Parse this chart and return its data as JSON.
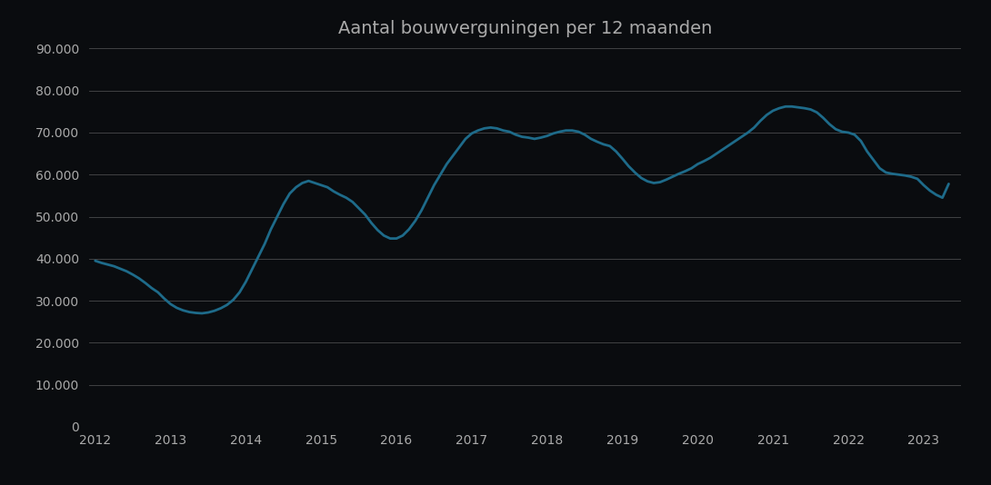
{
  "title": "Aantal bouwverguningen per 12 maanden",
  "background_color": "#0a0c0f",
  "line_color": "#1e6b8a",
  "grid_color": "#666666",
  "text_color": "#aaaaaa",
  "ylim": [
    0,
    90000
  ],
  "yticks": [
    0,
    10000,
    20000,
    30000,
    40000,
    50000,
    60000,
    70000,
    80000,
    90000
  ],
  "xlim_start": 2011.92,
  "xlim_end": 2023.5,
  "xtick_years": [
    2012,
    2013,
    2014,
    2015,
    2016,
    2017,
    2018,
    2019,
    2020,
    2021,
    2022,
    2023
  ],
  "data": [
    [
      2012.0,
      39500
    ],
    [
      2012.083,
      39000
    ],
    [
      2012.167,
      38600
    ],
    [
      2012.25,
      38200
    ],
    [
      2012.333,
      37600
    ],
    [
      2012.417,
      37000
    ],
    [
      2012.5,
      36200
    ],
    [
      2012.583,
      35300
    ],
    [
      2012.667,
      34200
    ],
    [
      2012.75,
      33000
    ],
    [
      2012.833,
      32000
    ],
    [
      2012.917,
      30500
    ],
    [
      2013.0,
      29200
    ],
    [
      2013.083,
      28300
    ],
    [
      2013.167,
      27700
    ],
    [
      2013.25,
      27300
    ],
    [
      2013.333,
      27100
    ],
    [
      2013.417,
      27000
    ],
    [
      2013.5,
      27200
    ],
    [
      2013.583,
      27600
    ],
    [
      2013.667,
      28200
    ],
    [
      2013.75,
      29000
    ],
    [
      2013.833,
      30200
    ],
    [
      2013.917,
      32000
    ],
    [
      2014.0,
      34500
    ],
    [
      2014.083,
      37500
    ],
    [
      2014.167,
      40500
    ],
    [
      2014.25,
      43500
    ],
    [
      2014.333,
      47000
    ],
    [
      2014.417,
      50000
    ],
    [
      2014.5,
      53000
    ],
    [
      2014.583,
      55500
    ],
    [
      2014.667,
      57000
    ],
    [
      2014.75,
      58000
    ],
    [
      2014.833,
      58500
    ],
    [
      2014.917,
      58000
    ],
    [
      2015.0,
      57500
    ],
    [
      2015.083,
      57000
    ],
    [
      2015.167,
      56000
    ],
    [
      2015.25,
      55200
    ],
    [
      2015.333,
      54500
    ],
    [
      2015.417,
      53500
    ],
    [
      2015.5,
      52000
    ],
    [
      2015.583,
      50500
    ],
    [
      2015.667,
      48500
    ],
    [
      2015.75,
      46800
    ],
    [
      2015.833,
      45500
    ],
    [
      2015.917,
      44800
    ],
    [
      2016.0,
      44800
    ],
    [
      2016.083,
      45500
    ],
    [
      2016.167,
      47000
    ],
    [
      2016.25,
      49000
    ],
    [
      2016.333,
      51500
    ],
    [
      2016.417,
      54500
    ],
    [
      2016.5,
      57500
    ],
    [
      2016.583,
      60000
    ],
    [
      2016.667,
      62500
    ],
    [
      2016.75,
      64500
    ],
    [
      2016.833,
      66500
    ],
    [
      2016.917,
      68500
    ],
    [
      2017.0,
      69800
    ],
    [
      2017.083,
      70500
    ],
    [
      2017.167,
      71000
    ],
    [
      2017.25,
      71200
    ],
    [
      2017.333,
      71000
    ],
    [
      2017.417,
      70500
    ],
    [
      2017.5,
      70200
    ],
    [
      2017.583,
      69500
    ],
    [
      2017.667,
      69000
    ],
    [
      2017.75,
      68800
    ],
    [
      2017.833,
      68500
    ],
    [
      2017.917,
      68800
    ],
    [
      2018.0,
      69200
    ],
    [
      2018.083,
      69800
    ],
    [
      2018.167,
      70200
    ],
    [
      2018.25,
      70500
    ],
    [
      2018.333,
      70500
    ],
    [
      2018.417,
      70200
    ],
    [
      2018.5,
      69500
    ],
    [
      2018.583,
      68500
    ],
    [
      2018.667,
      67800
    ],
    [
      2018.75,
      67200
    ],
    [
      2018.833,
      66800
    ],
    [
      2018.917,
      65500
    ],
    [
      2019.0,
      63800
    ],
    [
      2019.083,
      62000
    ],
    [
      2019.167,
      60500
    ],
    [
      2019.25,
      59200
    ],
    [
      2019.333,
      58400
    ],
    [
      2019.417,
      58000
    ],
    [
      2019.5,
      58200
    ],
    [
      2019.583,
      58800
    ],
    [
      2019.667,
      59500
    ],
    [
      2019.75,
      60200
    ],
    [
      2019.833,
      60800
    ],
    [
      2019.917,
      61500
    ],
    [
      2020.0,
      62500
    ],
    [
      2020.083,
      63200
    ],
    [
      2020.167,
      64000
    ],
    [
      2020.25,
      65000
    ],
    [
      2020.333,
      66000
    ],
    [
      2020.417,
      67000
    ],
    [
      2020.5,
      68000
    ],
    [
      2020.583,
      69000
    ],
    [
      2020.667,
      70000
    ],
    [
      2020.75,
      71200
    ],
    [
      2020.833,
      72800
    ],
    [
      2020.917,
      74200
    ],
    [
      2021.0,
      75200
    ],
    [
      2021.083,
      75800
    ],
    [
      2021.167,
      76200
    ],
    [
      2021.25,
      76200
    ],
    [
      2021.333,
      76000
    ],
    [
      2021.417,
      75800
    ],
    [
      2021.5,
      75500
    ],
    [
      2021.583,
      74800
    ],
    [
      2021.667,
      73500
    ],
    [
      2021.75,
      72000
    ],
    [
      2021.833,
      70800
    ],
    [
      2021.917,
      70200
    ],
    [
      2022.0,
      70000
    ],
    [
      2022.083,
      69500
    ],
    [
      2022.167,
      68000
    ],
    [
      2022.25,
      65500
    ],
    [
      2022.333,
      63500
    ],
    [
      2022.417,
      61500
    ],
    [
      2022.5,
      60500
    ],
    [
      2022.583,
      60200
    ],
    [
      2022.667,
      60000
    ],
    [
      2022.75,
      59800
    ],
    [
      2022.833,
      59500
    ],
    [
      2022.917,
      59000
    ],
    [
      2023.0,
      57500
    ],
    [
      2023.083,
      56200
    ],
    [
      2023.167,
      55200
    ],
    [
      2023.25,
      54500
    ],
    [
      2023.333,
      57800
    ]
  ]
}
